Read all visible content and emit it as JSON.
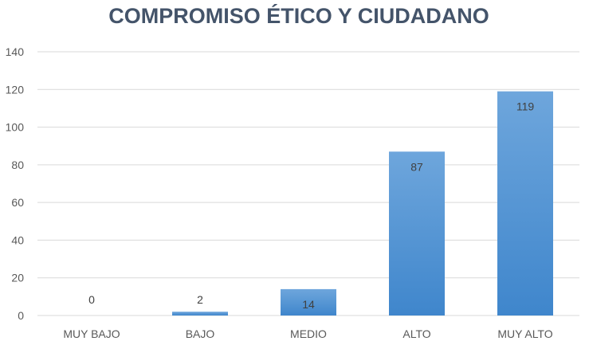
{
  "chart_data": {
    "type": "bar",
    "title": "COMPROMISO ÉTICO Y CIUDADANO",
    "categories": [
      "MUY BAJO",
      "BAJO",
      "MEDIO",
      "ALTO",
      "MUY ALTO"
    ],
    "values": [
      0,
      2,
      14,
      87,
      119
    ],
    "ylim": [
      0,
      140
    ],
    "yticks": [
      0,
      20,
      40,
      60,
      80,
      100,
      120,
      140
    ],
    "grid": true,
    "legend": "none",
    "colors": {
      "bar_top": "#6ea6dc",
      "bar_bottom": "#3f86cc",
      "text": "#595959",
      "title": "#44546a"
    }
  }
}
